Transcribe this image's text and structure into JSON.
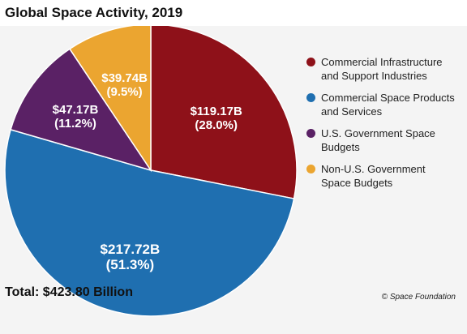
{
  "chart_data": {
    "type": "pie",
    "title": "Global Space Activity, 2019",
    "slices": [
      {
        "name": "Commercial Infrastructure and Support Industries",
        "value": 119.17,
        "value_label": "$119.17B",
        "percent_label": "(28.0%)",
        "color": "#8e1119"
      },
      {
        "name": "Commercial Space Products and Services",
        "value": 217.72,
        "value_label": "$217.72B",
        "percent_label": "(51.3%)",
        "color": "#1f6fb0"
      },
      {
        "name": "U.S. Government Space Budgets",
        "value": 47.17,
        "value_label": "$47.17B",
        "percent_label": "(11.2%)",
        "color": "#5a2165"
      },
      {
        "name": "Non-U.S. Government Space Budgets",
        "value": 39.74,
        "value_label": "$39.74B",
        "percent_label": "(9.5%)",
        "color": "#eba530"
      }
    ],
    "legend": {
      "position": "right",
      "items": [
        {
          "label_line1": "Commercial Infrastructure",
          "label_line2": "and Support Industries",
          "color": "#8e1119"
        },
        {
          "label_line1": "Commercial Space Products",
          "label_line2": "and Services",
          "color": "#1f6fb0"
        },
        {
          "label_line1": "U.S. Government Space",
          "label_line2": "Budgets",
          "color": "#5a2165"
        },
        {
          "label_line1": "Non-U.S. Government",
          "label_line2": "Space Budgets",
          "color": "#eba530"
        }
      ]
    },
    "total": "Total: $423.80 Billion",
    "credit": "© Space Foundation"
  }
}
